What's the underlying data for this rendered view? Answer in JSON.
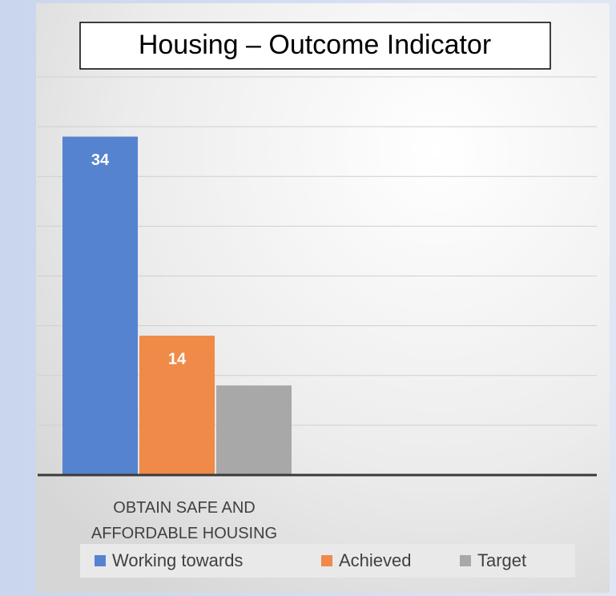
{
  "chart_data": {
    "type": "bar",
    "title": "Housing – Outcome Indicator",
    "categories": [
      "OBTAIN SAFE AND AFFORDABLE HOUSING"
    ],
    "series": [
      {
        "name": "Working towards",
        "color": "#5583d0",
        "values": [
          34
        ],
        "labels": true
      },
      {
        "name": "Achieved",
        "color": "#ef8a48",
        "values": [
          14
        ],
        "labels": true
      },
      {
        "name": "Target",
        "color": "#a8a8a8",
        "values": [
          9
        ],
        "labels": false
      }
    ],
    "ylim": [
      0,
      40
    ],
    "yticks": [
      0,
      5,
      10,
      15,
      20,
      25,
      30,
      35,
      40
    ],
    "grid": true,
    "legend": "bottom"
  }
}
